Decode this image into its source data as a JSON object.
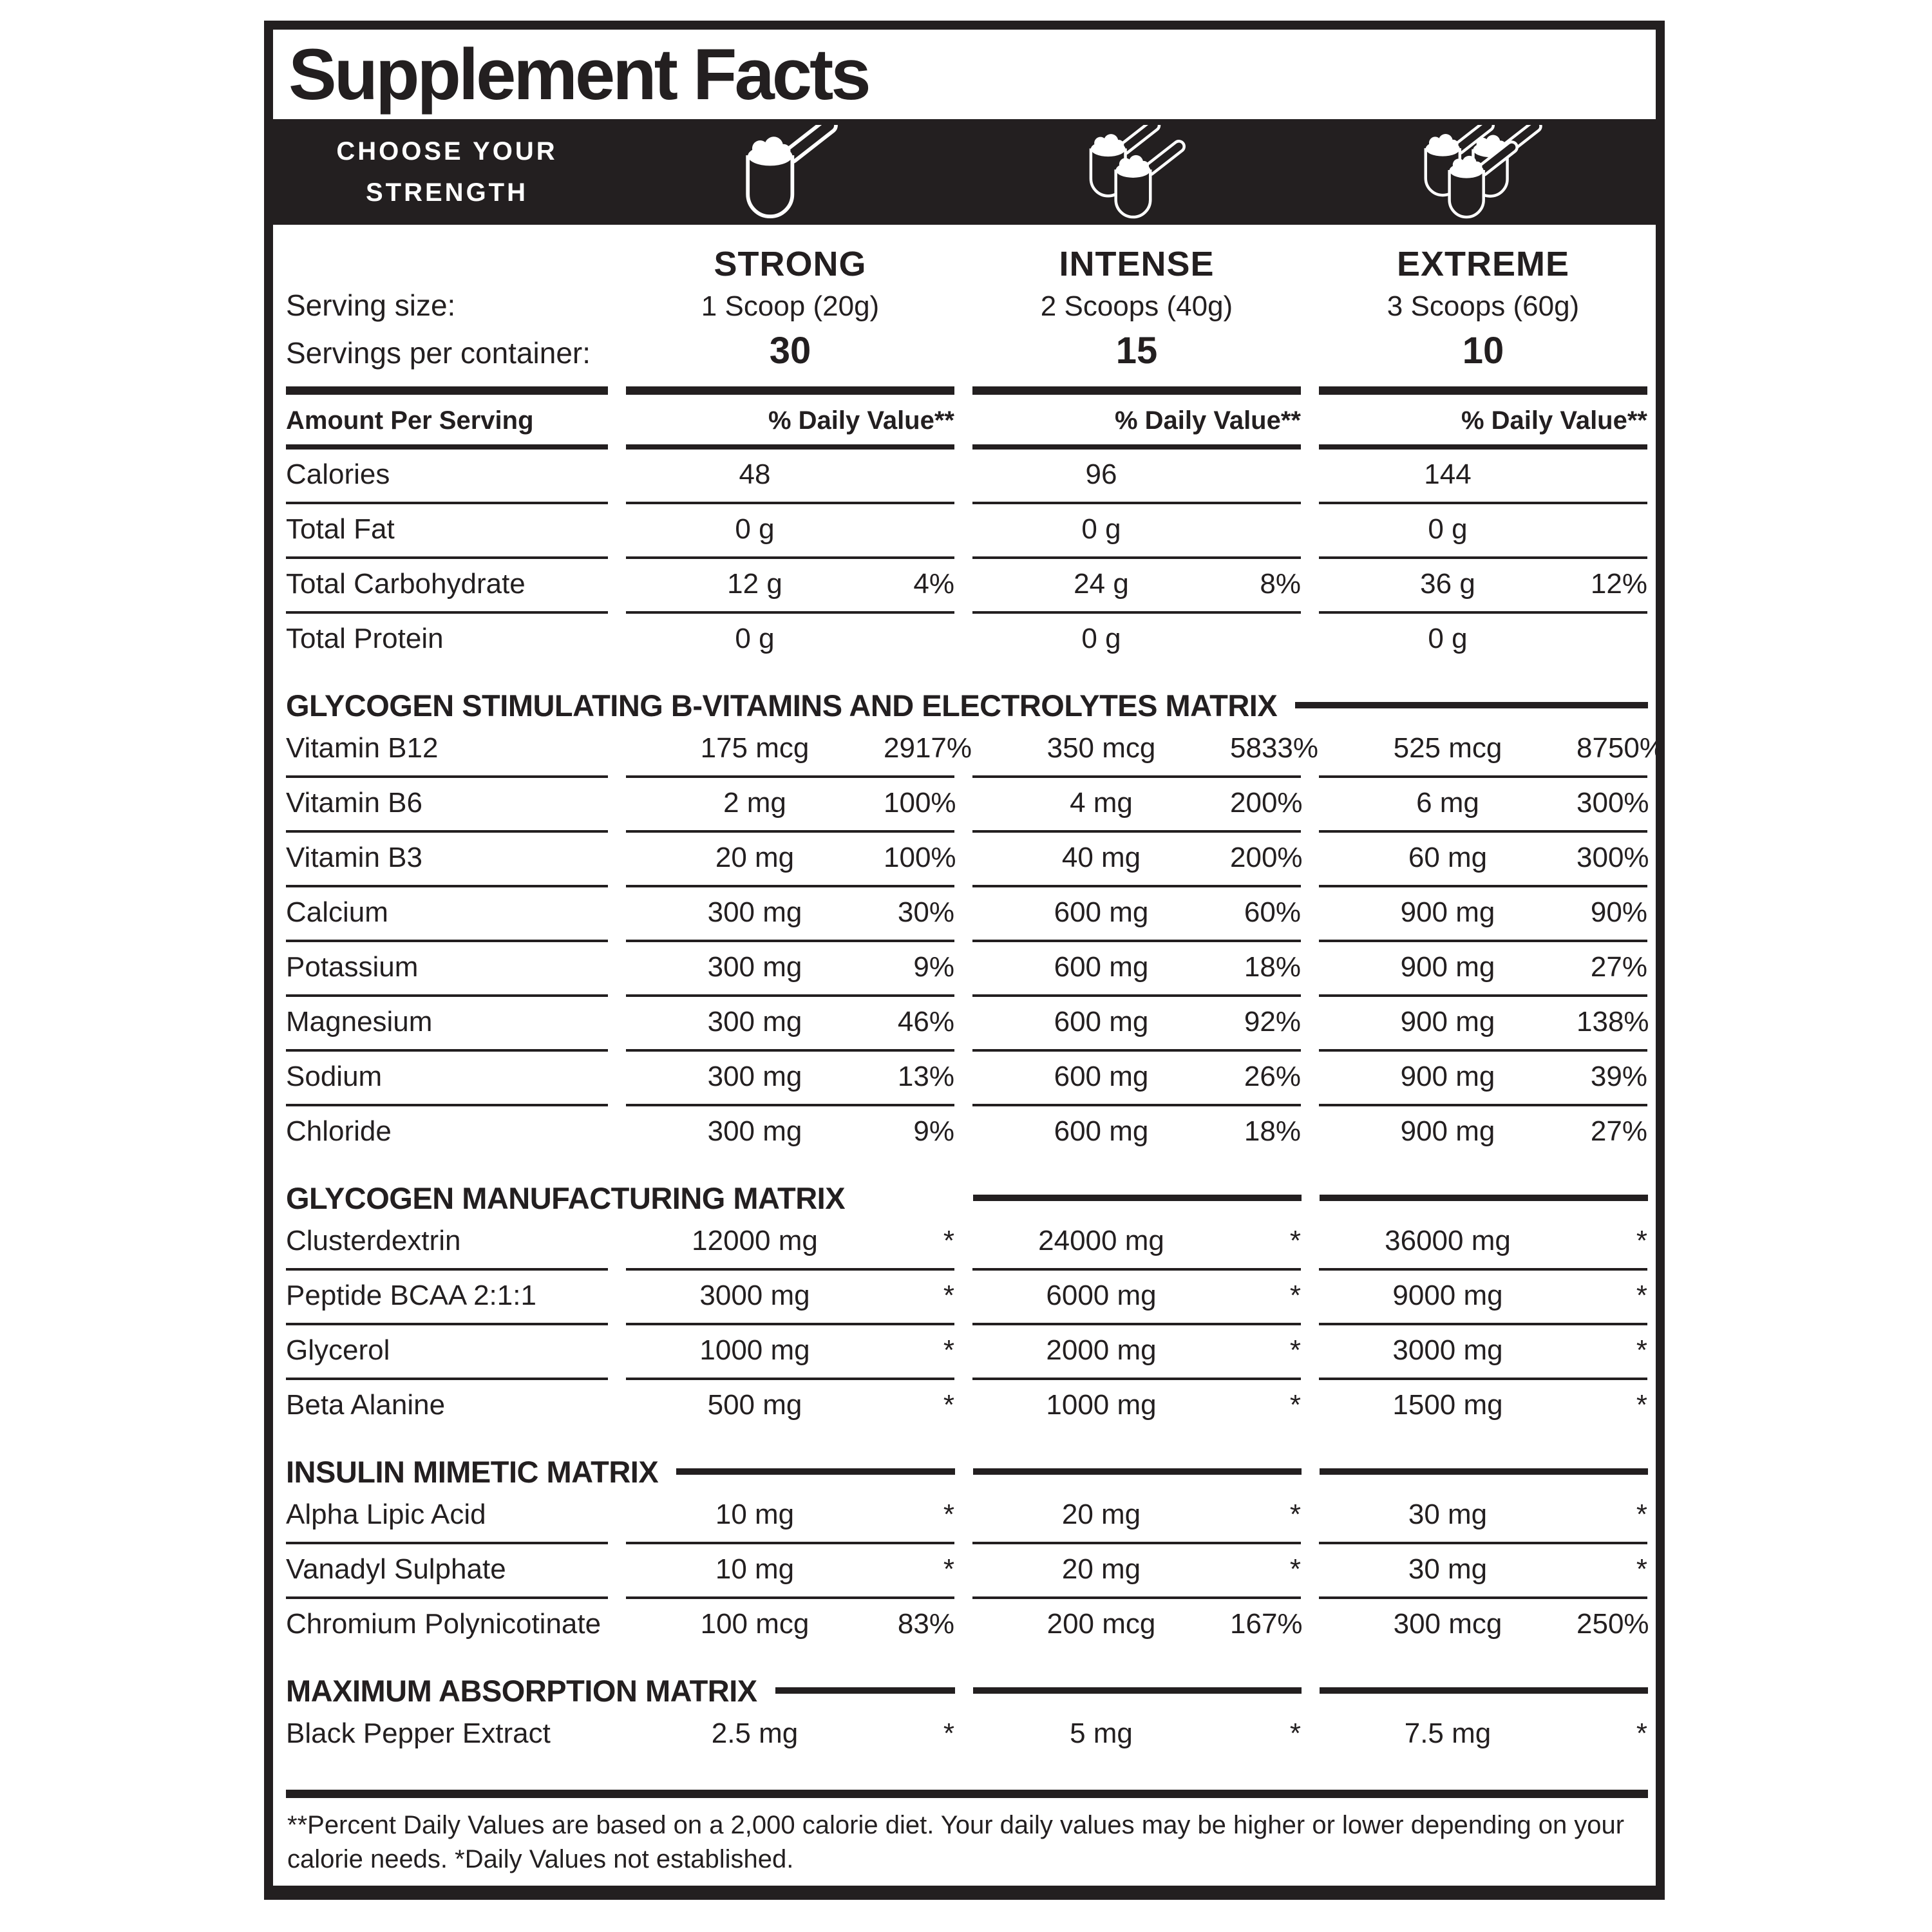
{
  "ink_color": "#231f20",
  "title": "Supplement Facts",
  "strength_bar": {
    "line1": "CHOOSE YOUR",
    "line2": "STRENGTH",
    "icons": [
      "single-scoop-icon",
      "double-scoop-icon",
      "triple-scoop-icon"
    ]
  },
  "serving": {
    "serving_size_label": "Serving size:",
    "servings_per_container_label": "Servings per container:",
    "amount_per_serving_label": "Amount Per Serving",
    "daily_value_label": "% Daily Value**"
  },
  "columns": [
    {
      "name": "STRONG",
      "serving_size": "1 Scoop (20g)",
      "servings_per_container": "30"
    },
    {
      "name": "INTENSE",
      "serving_size": "2 Scoops (40g)",
      "servings_per_container": "15"
    },
    {
      "name": "EXTREME",
      "serving_size": "3 Scoops (60g)",
      "servings_per_container": "10"
    }
  ],
  "sections": [
    {
      "header": null,
      "rows": [
        {
          "label": "Calories",
          "values": [
            [
              "48",
              ""
            ],
            [
              "96",
              ""
            ],
            [
              "144",
              ""
            ]
          ]
        },
        {
          "label": "Total Fat",
          "values": [
            [
              "0 g",
              ""
            ],
            [
              "0 g",
              ""
            ],
            [
              "0 g",
              ""
            ]
          ]
        },
        {
          "label": "Total Carbohydrate",
          "values": [
            [
              "12 g",
              "4%"
            ],
            [
              "24 g",
              "8%"
            ],
            [
              "36 g",
              "12%"
            ]
          ]
        },
        {
          "label": "Total Protein",
          "values": [
            [
              "0 g",
              ""
            ],
            [
              "0 g",
              ""
            ],
            [
              "0 g",
              ""
            ]
          ]
        }
      ]
    },
    {
      "header": "GLYCOGEN STIMULATING B-VITAMINS AND ELECTROLYTES MATRIX",
      "rows": [
        {
          "label": "Vitamin B12",
          "values": [
            [
              "175 mcg",
              "2917%"
            ],
            [
              "350 mcg",
              "5833%"
            ],
            [
              "525 mcg",
              "8750%"
            ]
          ]
        },
        {
          "label": "Vitamin B6",
          "values": [
            [
              "2 mg",
              "100%"
            ],
            [
              "4 mg",
              "200%"
            ],
            [
              "6 mg",
              "300%"
            ]
          ]
        },
        {
          "label": "Vitamin B3",
          "values": [
            [
              "20 mg",
              "100%"
            ],
            [
              "40 mg",
              "200%"
            ],
            [
              "60 mg",
              "300%"
            ]
          ]
        },
        {
          "label": "Calcium",
          "values": [
            [
              "300 mg",
              "30%"
            ],
            [
              "600 mg",
              "60%"
            ],
            [
              "900 mg",
              "90%"
            ]
          ]
        },
        {
          "label": "Potassium",
          "values": [
            [
              "300 mg",
              "9%"
            ],
            [
              "600 mg",
              "18%"
            ],
            [
              "900 mg",
              "27%"
            ]
          ]
        },
        {
          "label": "Magnesium",
          "values": [
            [
              "300 mg",
              "46%"
            ],
            [
              "600 mg",
              "92%"
            ],
            [
              "900 mg",
              "138%"
            ]
          ]
        },
        {
          "label": "Sodium",
          "values": [
            [
              "300 mg",
              "13%"
            ],
            [
              "600 mg",
              "26%"
            ],
            [
              "900 mg",
              "39%"
            ]
          ]
        },
        {
          "label": "Chloride",
          "values": [
            [
              "300 mg",
              "9%"
            ],
            [
              "600 mg",
              "18%"
            ],
            [
              "900 mg",
              "27%"
            ]
          ]
        }
      ]
    },
    {
      "header": "GLYCOGEN MANUFACTURING MATRIX",
      "rows": [
        {
          "label": "Clusterdextrin",
          "values": [
            [
              "12000 mg",
              "*"
            ],
            [
              "24000 mg",
              "*"
            ],
            [
              "36000 mg",
              "*"
            ]
          ]
        },
        {
          "label": "Peptide BCAA 2:1:1",
          "values": [
            [
              "3000 mg",
              "*"
            ],
            [
              "6000 mg",
              "*"
            ],
            [
              "9000 mg",
              "*"
            ]
          ]
        },
        {
          "label": "Glycerol",
          "values": [
            [
              "1000 mg",
              "*"
            ],
            [
              "2000 mg",
              "*"
            ],
            [
              "3000 mg",
              "*"
            ]
          ]
        },
        {
          "label": "Beta Alanine",
          "values": [
            [
              "500 mg",
              "*"
            ],
            [
              "1000 mg",
              "*"
            ],
            [
              "1500 mg",
              "*"
            ]
          ]
        }
      ]
    },
    {
      "header": "INSULIN MIMETIC MATRIX",
      "rows": [
        {
          "label": "Alpha Lipic Acid",
          "values": [
            [
              "10 mg",
              "*"
            ],
            [
              "20 mg",
              "*"
            ],
            [
              "30 mg",
              "*"
            ]
          ]
        },
        {
          "label": "Vanadyl Sulphate",
          "values": [
            [
              "10 mg",
              "*"
            ],
            [
              "20 mg",
              "*"
            ],
            [
              "30 mg",
              "*"
            ]
          ]
        },
        {
          "label": "Chromium Polynicotinate",
          "values": [
            [
              "100 mcg",
              "83%"
            ],
            [
              "200 mcg",
              "167%"
            ],
            [
              "300 mcg",
              "250%"
            ]
          ]
        }
      ]
    },
    {
      "header": "MAXIMUM ABSORPTION MATRIX",
      "rows": [
        {
          "label": "Black Pepper Extract",
          "values": [
            [
              "2.5 mg",
              "*"
            ],
            [
              "5 mg",
              "*"
            ],
            [
              "7.5 mg",
              "*"
            ]
          ]
        }
      ]
    }
  ],
  "footnote": "**Percent Daily Values are based on a 2,000 calorie diet. Your daily values may be higher or lower depending on your calorie needs. *Daily Values not established."
}
